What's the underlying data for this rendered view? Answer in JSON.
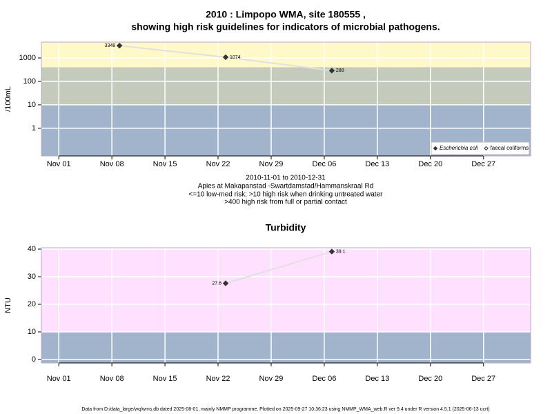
{
  "chart_data": [
    {
      "type": "line",
      "title": [
        "2010 : Limpopo WMA, site 180555 ,",
        "showing high risk guidelines for indicators of microbial pathogens."
      ],
      "notes": [
        "2010-11-01 to 2010-12-31",
        "Apies at Makapanstad -Swartdamstad/Hammanskraal Rd",
        "<=10 low-med risk; >10 high risk when drinking untreated water",
        ">400 high risk from full or partial contact"
      ],
      "ylabel": "/100mL",
      "log_y": true,
      "x": [
        "2010-11-09",
        "2010-11-23",
        "2010-12-07"
      ],
      "series": [
        {
          "name": "Escherichia coli",
          "color": "#333333",
          "marker": "filled",
          "values": [
            3348,
            1074,
            288
          ]
        },
        {
          "name": "faecal coliforms",
          "color": "#333333",
          "marker": "open",
          "values": [
            null,
            null,
            null
          ]
        }
      ],
      "line_color": "#e0e0e0",
      "thresholds": [
        10,
        400
      ],
      "band_colors": [
        "#a2b4cc",
        "#c4cbbd",
        "#fff8c8"
      ],
      "xlim": [
        "2010-10-29T17:00",
        "2011-01-02T05:00"
      ],
      "xticks": [
        {
          "value": "2010-11-01",
          "label": "Nov 01"
        },
        {
          "value": "2010-11-08",
          "label": "Nov 08"
        },
        {
          "value": "2010-11-15",
          "label": "Nov 15"
        },
        {
          "value": "2010-11-22",
          "label": "Nov 22"
        },
        {
          "value": "2010-11-29",
          "label": "Nov 29"
        },
        {
          "value": "2010-12-06",
          "label": "Dec 06"
        },
        {
          "value": "2010-12-13",
          "label": "Dec 13"
        },
        {
          "value": "2010-12-20",
          "label": "Dec 20"
        },
        {
          "value": "2010-12-27",
          "label": "Dec 27"
        }
      ],
      "ylim": [
        0.066,
        4750
      ],
      "yticks": [
        1,
        10,
        100,
        1000
      ],
      "grid": true,
      "legend": "bottom right"
    },
    {
      "type": "line",
      "title": [
        "Turbidity"
      ],
      "ylabel": "NTU",
      "log_y": false,
      "x": [
        "2010-11-23",
        "2010-12-07"
      ],
      "series": [
        {
          "name": "Turbidity",
          "color": "#333333",
          "marker": "filled",
          "values": [
            27.6,
            39.1
          ]
        }
      ],
      "line_color": "#e0e0e0",
      "thresholds": [
        10
      ],
      "band_colors": [
        "#a2b4cc",
        "#ffe0ff"
      ],
      "xlim": [
        "2010-10-29T17:00",
        "2011-01-02T05:00"
      ],
      "xticks": [
        {
          "value": "2010-11-01",
          "label": "Nov 01"
        },
        {
          "value": "2010-11-08",
          "label": "Nov 08"
        },
        {
          "value": "2010-11-15",
          "label": "Nov 15"
        },
        {
          "value": "2010-11-22",
          "label": "Nov 22"
        },
        {
          "value": "2010-11-29",
          "label": "Nov 29"
        },
        {
          "value": "2010-12-06",
          "label": "Dec 06"
        },
        {
          "value": "2010-12-13",
          "label": "Dec 13"
        },
        {
          "value": "2010-12-20",
          "label": "Dec 20"
        },
        {
          "value": "2010-12-27",
          "label": "Dec 27"
        }
      ],
      "ylim": [
        -1.25,
        40.5
      ],
      "yticks": [
        0,
        10,
        20,
        30,
        40
      ],
      "grid": true
    }
  ],
  "footer": "Data from D:/data_large/wq/wms.db dated 2025-08-01, mainly NMMP programme. Plotted on 2025-09-27 10:36:23 using NMMP_WMA_web.R ver 9.4 under R version 4.5.1 (2025-06-13 ucrt)"
}
